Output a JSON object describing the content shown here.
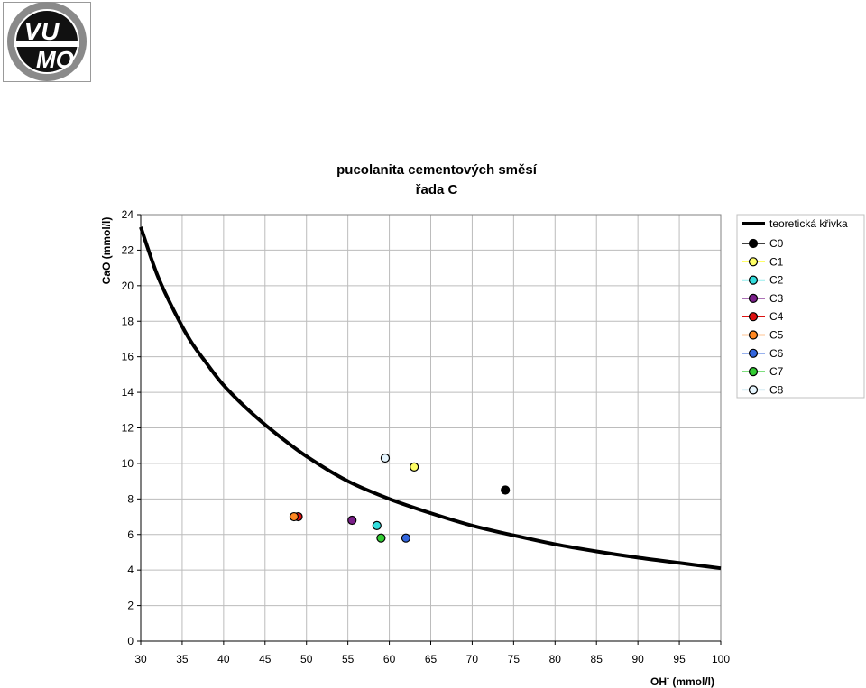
{
  "logo": {
    "line1": "VU",
    "line2": "MO"
  },
  "chart_data": {
    "type": "scatter",
    "title": "pucolanita cementových směsí",
    "subtitle": "řada C",
    "xlabel_main": "OH",
    "xlabel_sup": "-",
    "xlabel_unit": "(mmol/l)",
    "ylabel": "CaO (mmol/l)",
    "xlim": [
      30,
      100
    ],
    "ylim": [
      0,
      24
    ],
    "xticks": [
      "30",
      "35",
      "40",
      "45",
      "50",
      "55",
      "60",
      "65",
      "70",
      "75",
      "80",
      "85",
      "90",
      "95",
      "100"
    ],
    "yticks": [
      "0",
      "2",
      "4",
      "6",
      "8",
      "10",
      "12",
      "14",
      "16",
      "18",
      "20",
      "22",
      "24"
    ],
    "grid": true,
    "legend_position": "top-right",
    "curve": {
      "name": "teoretická křivka",
      "x": [
        30,
        32,
        34,
        36,
        38,
        40,
        43,
        46,
        50,
        55,
        60,
        65,
        70,
        75,
        80,
        85,
        90,
        95,
        100
      ],
      "y": [
        23.3,
        20.6,
        18.6,
        16.9,
        15.6,
        14.4,
        13.0,
        11.8,
        10.4,
        9.0,
        8.0,
        7.2,
        6.5,
        5.95,
        5.45,
        5.05,
        4.7,
        4.4,
        4.1
      ]
    },
    "series": [
      {
        "name": "C0",
        "color": "#000000",
        "x": [
          74
        ],
        "y": [
          8.5
        ]
      },
      {
        "name": "C1",
        "color": "#ffff66",
        "x": [
          63
        ],
        "y": [
          9.8
        ]
      },
      {
        "name": "C2",
        "color": "#33dddd",
        "x": [
          58.5
        ],
        "y": [
          6.5
        ]
      },
      {
        "name": "C3",
        "color": "#7b1f8a",
        "x": [
          55.5
        ],
        "y": [
          6.8
        ]
      },
      {
        "name": "C4",
        "color": "#dd1111",
        "x": [
          49
        ],
        "y": [
          7.0
        ]
      },
      {
        "name": "C5",
        "color": "#ff8822",
        "x": [
          48.5
        ],
        "y": [
          7.0
        ]
      },
      {
        "name": "C6",
        "color": "#3366dd",
        "x": [
          62
        ],
        "y": [
          5.8
        ]
      },
      {
        "name": "C7",
        "color": "#33cc33",
        "x": [
          59
        ],
        "y": [
          5.8
        ]
      },
      {
        "name": "C8",
        "color": "#e6f6ff",
        "x": [
          59.5
        ],
        "y": [
          10.3
        ]
      }
    ]
  }
}
